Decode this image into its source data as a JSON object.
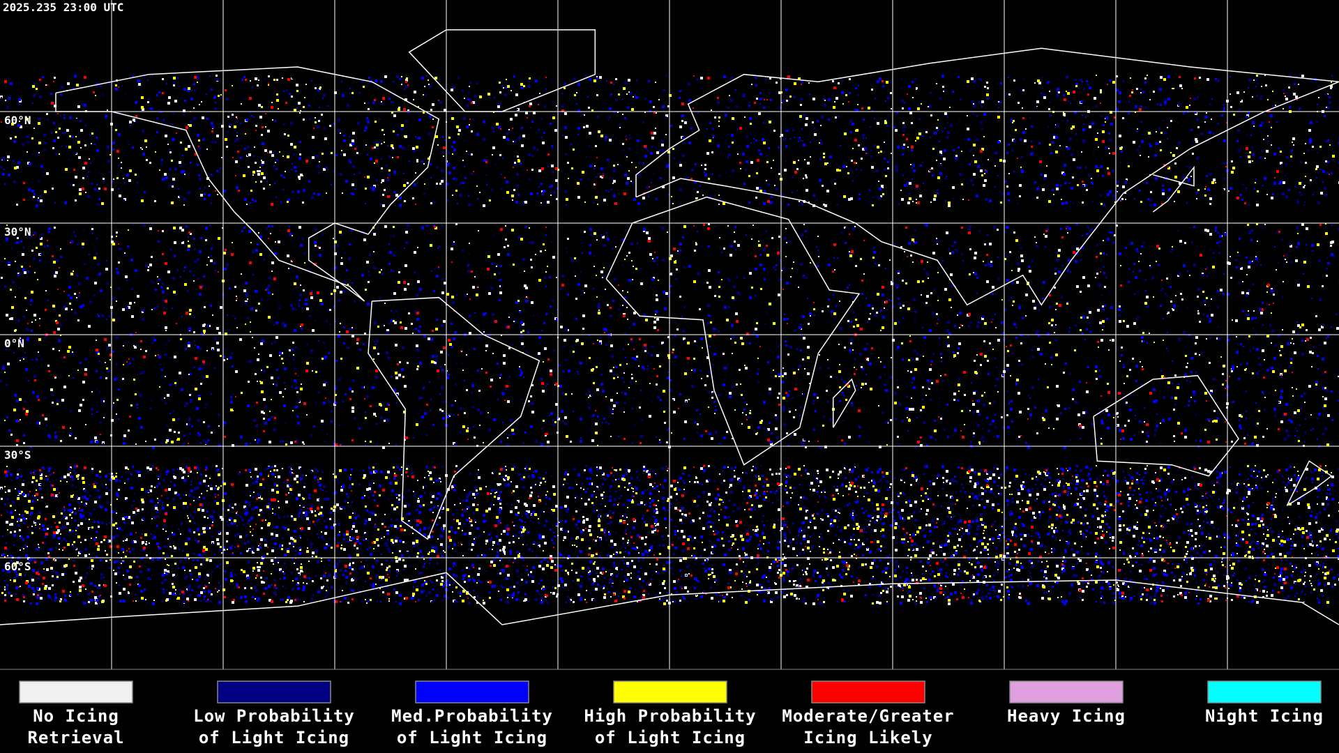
{
  "timestamp": "2025.235 23:00 UTC",
  "latitude_labels": [
    "60°N",
    "30°N",
    "0°N",
    "30°S",
    "60°S"
  ],
  "legend": [
    {
      "label": [
        "No Icing",
        "Retrieval"
      ],
      "color": "#f0f0f0"
    },
    {
      "label": [
        "Low Probability",
        "of Light Icing"
      ],
      "color": "#000080"
    },
    {
      "label": [
        "Med.Probability",
        "of Light Icing"
      ],
      "color": "#0000ff"
    },
    {
      "label": [
        "High Probability",
        "of Light Icing"
      ],
      "color": "#ffff00"
    },
    {
      "label": [
        "Moderate/Greater",
        "Icing Likely"
      ],
      "color": "#ff0000"
    },
    {
      "label": [
        "Heavy Icing"
      ],
      "color": "#e0a0e0"
    },
    {
      "label": [
        "Night Icing"
      ],
      "color": "#00ffff"
    }
  ]
}
